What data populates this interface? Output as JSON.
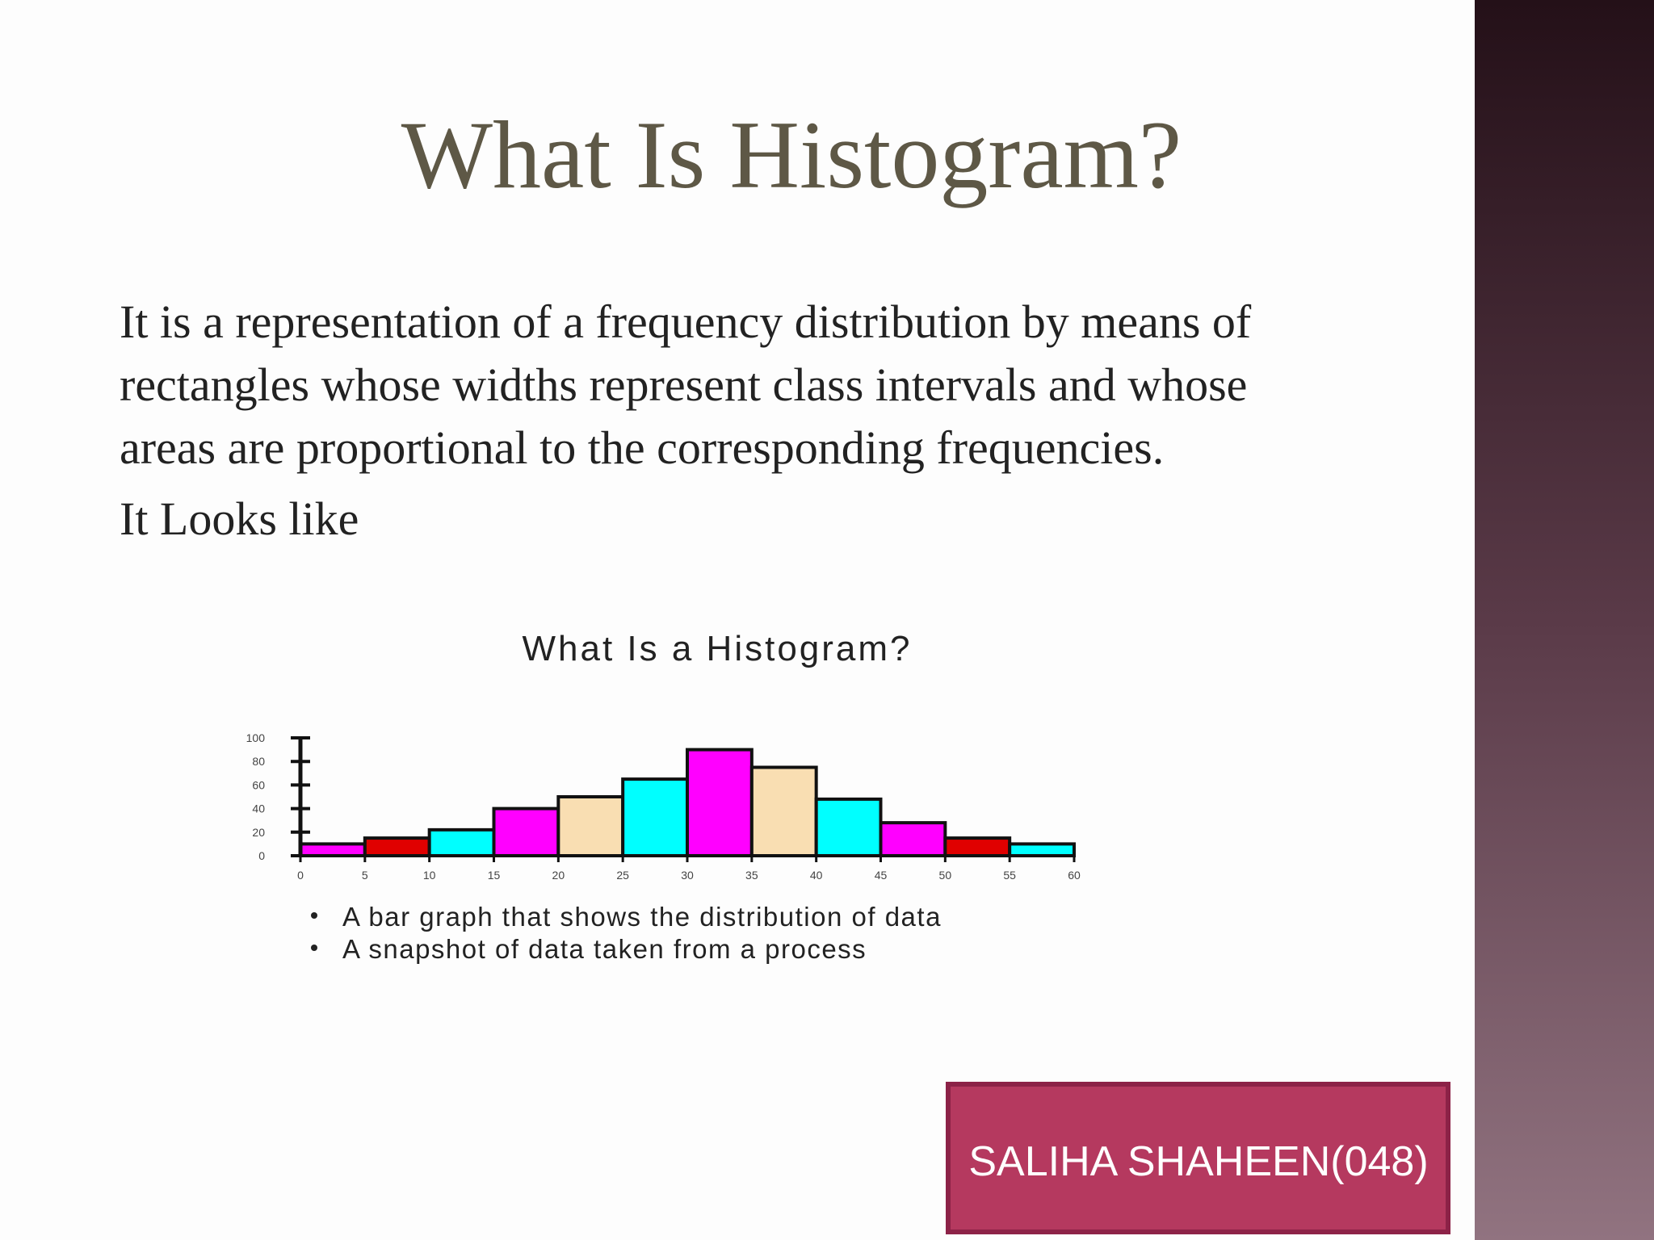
{
  "slide": {
    "title": "What Is Histogram?",
    "paragraph_lines": [
      "It is a representation of a frequency distribution by means of",
      "rectangles whose widths represent class intervals and whose",
      "areas are proportional to the corresponding frequencies."
    ],
    "second_paragraph": "It Looks like",
    "footer": "SALIHA SHAHEEN(048)"
  },
  "chart_data": {
    "type": "histogram",
    "title": "What Is a Histogram?",
    "bins": [
      0,
      5,
      10,
      15,
      20,
      25,
      30,
      35,
      40,
      45,
      50,
      55,
      60
    ],
    "values": [
      10,
      15,
      22,
      40,
      50,
      65,
      90,
      75,
      48,
      28,
      15,
      10
    ],
    "colors": [
      "#ff00ff",
      "#e00000",
      "#00ffff",
      "#ff00ff",
      "#f9deb2",
      "#00ffff",
      "#ff00ff",
      "#f9deb2",
      "#00ffff",
      "#ff00ff",
      "#e00000",
      "#00ffff"
    ],
    "xlim": [
      0,
      60
    ],
    "xticks": [
      0,
      5,
      10,
      15,
      20,
      25,
      30,
      35,
      40,
      45,
      50,
      55,
      60
    ],
    "ylim": [
      0,
      100
    ],
    "yticks": [
      0,
      20,
      40,
      60,
      80,
      100
    ],
    "annotations": [
      "A bar graph that shows the distribution of data",
      "A snapshot of data taken from a process"
    ]
  }
}
